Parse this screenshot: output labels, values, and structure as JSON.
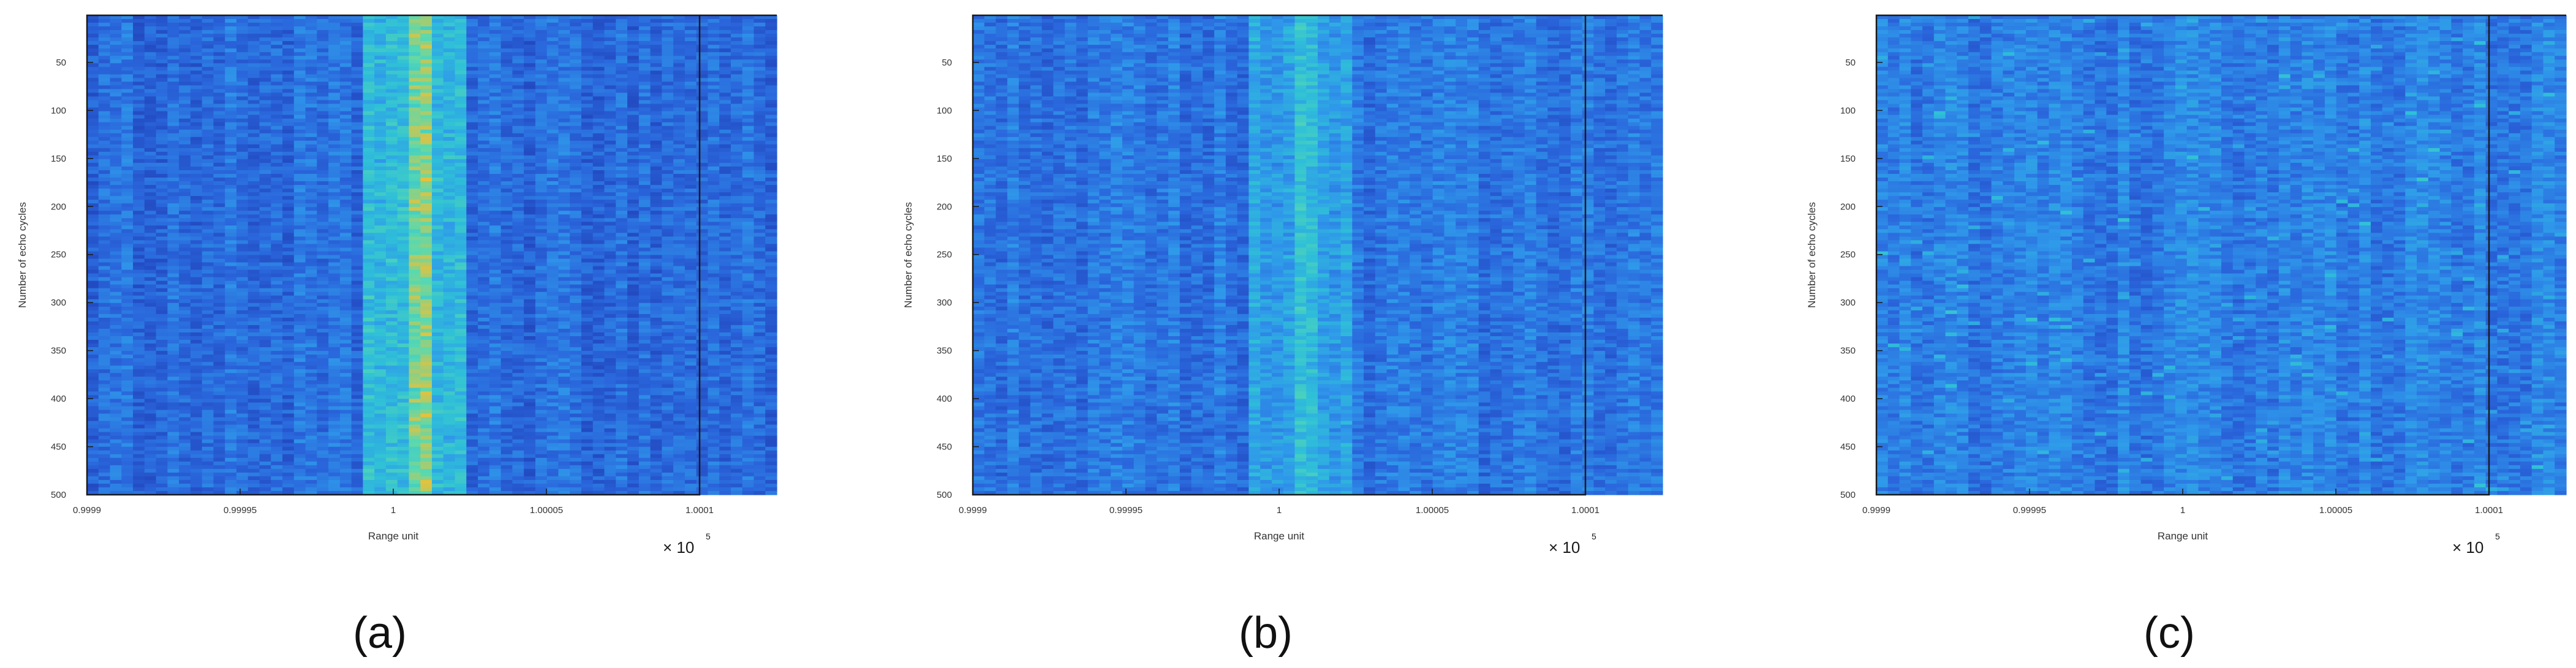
{
  "chart_data": [
    {
      "type": "heatmap",
      "panel_label": "(a)",
      "title": "",
      "xlabel": "Range unit",
      "ylabel": "Number of echo cycles",
      "x_exponent_label": "× 10^5",
      "x_multiplier": "× 10",
      "x_exponent": "5",
      "xticks": [
        "0.9999",
        "0.99995",
        "1",
        "1.00005",
        "1.0001"
      ],
      "yticks": [
        "50",
        "100",
        "150",
        "200",
        "250",
        "300",
        "350",
        "400",
        "450",
        "500"
      ],
      "xlim": [
        0.9999,
        1.0001
      ],
      "ylim": [
        1,
        500
      ],
      "target_x_range": [
        0.99999,
        1.000025
      ],
      "target_peak_x": 1.00001,
      "target_strength": "strong",
      "colormap": [
        "#1f3fb6",
        "#2a66dc",
        "#2f97ea",
        "#2fc0d8",
        "#58d9b0",
        "#e3c23d"
      ]
    },
    {
      "type": "heatmap",
      "panel_label": "(b)",
      "title": "",
      "xlabel": "Range unit",
      "ylabel": "Number of echo cycles",
      "x_exponent_label": "× 10^5",
      "x_multiplier": "× 10",
      "x_exponent": "5",
      "xticks": [
        "0.9999",
        "0.99995",
        "1",
        "1.00005",
        "1.0001"
      ],
      "yticks": [
        "50",
        "100",
        "150",
        "200",
        "250",
        "300",
        "350",
        "400",
        "450",
        "500"
      ],
      "xlim": [
        0.9999,
        1.0001
      ],
      "ylim": [
        1,
        500
      ],
      "target_x_range": [
        0.99999,
        1.000025
      ],
      "target_peak_x": 1.00001,
      "target_strength": "moderate",
      "colormap": [
        "#1f3fb6",
        "#2a66dc",
        "#2f97ea",
        "#2fc0d8",
        "#58d9b0",
        "#e3c23d"
      ]
    },
    {
      "type": "heatmap",
      "panel_label": "(c)",
      "title": "",
      "xlabel": "Range unit",
      "ylabel": "Number of echo cycles",
      "x_exponent_label": "× 10^5",
      "x_multiplier": "× 10",
      "x_exponent": "5",
      "xticks": [
        "0.9999",
        "0.99995",
        "1",
        "1.00005",
        "1.0001"
      ],
      "yticks": [
        "50",
        "100",
        "150",
        "200",
        "250",
        "300",
        "350",
        "400",
        "450",
        "500"
      ],
      "xlim": [
        0.9999,
        1.0001
      ],
      "ylim": [
        1,
        500
      ],
      "target_x_range": [
        0.99999,
        1.000025
      ],
      "target_peak_x": 1.00001,
      "target_strength": "none",
      "colormap": [
        "#1f3fb6",
        "#2a66dc",
        "#2f97ea",
        "#2fc0d8",
        "#58d9b0",
        "#e3c23d"
      ]
    }
  ]
}
